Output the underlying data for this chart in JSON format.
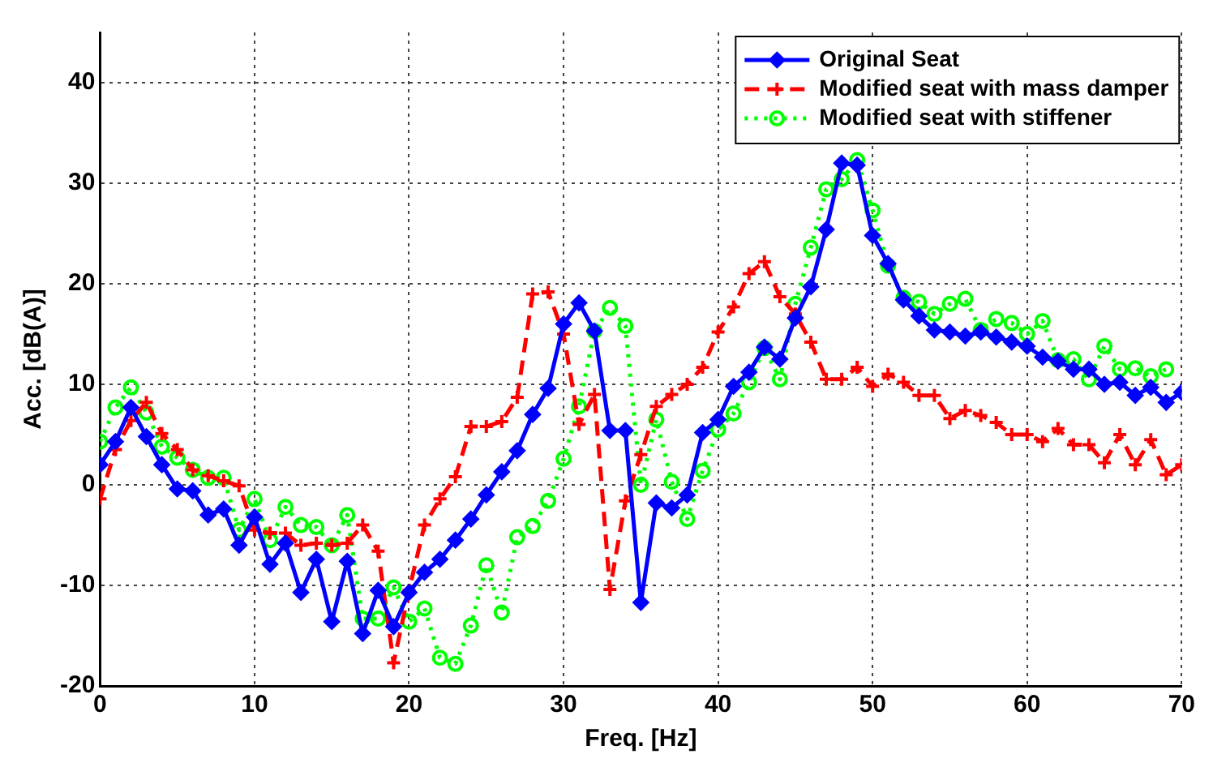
{
  "chart_data": {
    "type": "line",
    "xlabel": "Freq. [Hz]",
    "ylabel": "Acc. [dB(A)]",
    "x": [
      0,
      1,
      2,
      3,
      4,
      5,
      6,
      7,
      8,
      9,
      10,
      11,
      12,
      13,
      14,
      15,
      16,
      17,
      18,
      19,
      20,
      21,
      22,
      23,
      24,
      25,
      26,
      27,
      28,
      29,
      30,
      31,
      32,
      33,
      34,
      35,
      36,
      37,
      38,
      39,
      40,
      41,
      42,
      43,
      44,
      45,
      46,
      47,
      48,
      49,
      50,
      51,
      52,
      53,
      54,
      55,
      56,
      57,
      58,
      59,
      60,
      61,
      62,
      63,
      64,
      65,
      66,
      67,
      68,
      69,
      70
    ],
    "series": [
      {
        "name": "Original Seat",
        "color": "#0000ff",
        "marker": "diamond",
        "line_style": "solid",
        "values": [
          2,
          4.3,
          7.7,
          4.8,
          2,
          -0.4,
          -0.6,
          -3,
          -2.4,
          -6,
          -3.2,
          -7.9,
          -5.8,
          -10.7,
          -7.4,
          -13.6,
          -7.6,
          -14.8,
          -10.5,
          -14.1,
          -10.7,
          -8.7,
          -7.4,
          -5.5,
          -3.4,
          -1,
          1.3,
          3.4,
          7,
          9.6,
          16,
          18.1,
          15.3,
          5.4,
          5.4,
          -11.7,
          -1.8,
          -2.3,
          -1,
          5.2,
          6.5,
          9.8,
          11.2,
          13.7,
          12.5,
          16.6,
          19.7,
          25.4,
          32,
          31.8,
          24.8,
          22,
          18.4,
          16.8,
          15.4,
          15.2,
          14.8,
          15.2,
          14.7,
          14.2,
          13.8,
          12.7,
          12.3,
          11.5,
          11.5,
          10,
          10.2,
          8.9,
          9.7,
          8.2,
          9.2
        ]
      },
      {
        "name": "Modified seat with mass damper",
        "color": "#ff0000",
        "marker": "cross",
        "line_style": "dashed",
        "values": [
          -1.4,
          3.5,
          6.4,
          8.2,
          5.1,
          3.5,
          1.5,
          0.9,
          0.4,
          -0.1,
          -4.5,
          -4.8,
          -4.8,
          -6,
          -5.8,
          -6,
          -5.8,
          -4,
          -6.6,
          -17.7,
          -10.5,
          -4,
          -1.4,
          0.8,
          5.8,
          5.8,
          6.3,
          8.7,
          19,
          19.2,
          15,
          6,
          9,
          -10.4,
          -1.6,
          3,
          7.8,
          9,
          10,
          11.7,
          15.2,
          17.7,
          21,
          22.2,
          18.7,
          17,
          14.2,
          10.5,
          10.5,
          11.7,
          9.8,
          11,
          10.2,
          8.9,
          8.9,
          6.6,
          7.4,
          6.9,
          6.2,
          5,
          5,
          4.3,
          5.6,
          4,
          4,
          2.2,
          5,
          2,
          4.5,
          1,
          2
        ]
      },
      {
        "name": "Modified seat with stiffener",
        "color": "#00ff00",
        "marker": "circle",
        "line_style": "dotted",
        "values": [
          4.3,
          7.7,
          9.7,
          7.2,
          3.8,
          2.7,
          1.5,
          0.7,
          0.7,
          -4.5,
          -1.4,
          -5.5,
          -2.2,
          -4,
          -4.2,
          -6,
          -3,
          -13.3,
          -13.3,
          -10.2,
          -13.6,
          -12.3,
          -17.2,
          -17.8,
          -14,
          -8,
          -12.7,
          -5.2,
          -4.1,
          -1.6,
          2.6,
          7.8,
          15.3,
          17.6,
          15.8,
          0,
          6.5,
          0.3,
          -3.4,
          1.4,
          5.5,
          7.1,
          10.2,
          13.6,
          10.5,
          18,
          23.6,
          29.4,
          30.4,
          32.3,
          27.3,
          21.8,
          18.6,
          18.2,
          17,
          18,
          18.5,
          15.4,
          16.5,
          16.1,
          15,
          16.3,
          12.4,
          12.5,
          10.5,
          13.8,
          11.5,
          11.6,
          10.8,
          11.5,
          null
        ]
      }
    ],
    "xlim": [
      0,
      70
    ],
    "xticks": [
      0,
      10,
      20,
      30,
      40,
      50,
      60,
      70
    ],
    "ylim": [
      -20,
      45
    ],
    "yticks": [
      -20,
      -10,
      0,
      10,
      20,
      30,
      40
    ],
    "grid": true,
    "legend": "top right"
  }
}
